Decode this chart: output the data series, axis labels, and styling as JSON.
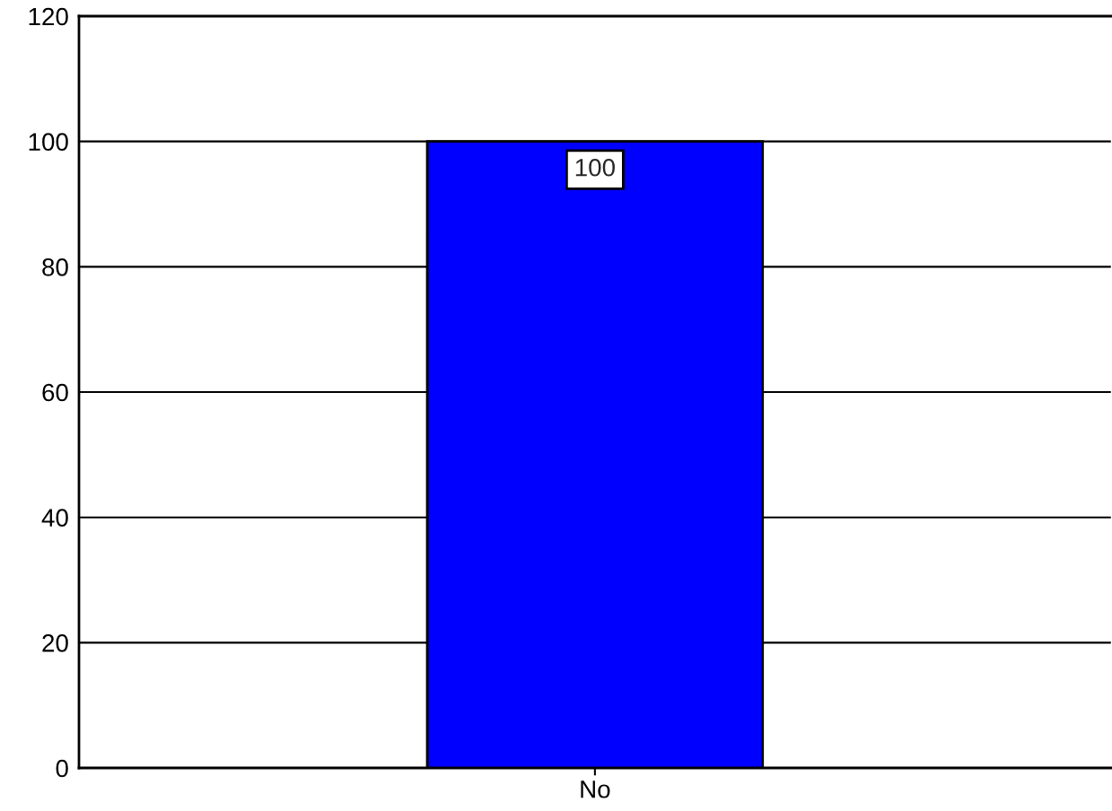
{
  "chart_data": {
    "type": "bar",
    "categories": [
      "No"
    ],
    "values": [
      100
    ],
    "color": "#0000ff",
    "ylim": [
      0,
      120
    ],
    "yticks": [
      0,
      20,
      40,
      60,
      80,
      100,
      120
    ],
    "grid": "y",
    "data_labels": true
  }
}
